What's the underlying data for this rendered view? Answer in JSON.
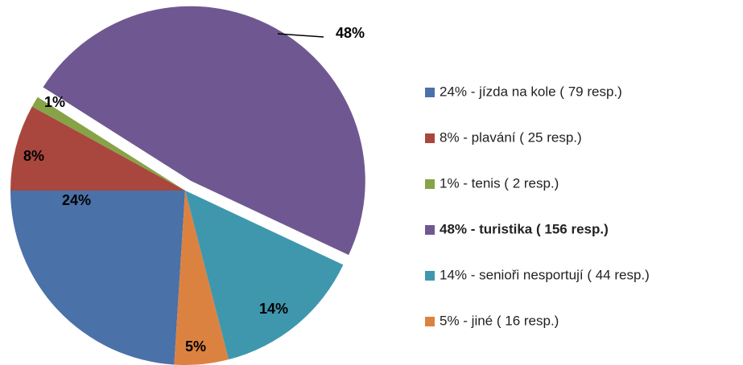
{
  "chart_data": {
    "type": "pie",
    "categories": [
      "24% - jízda na kole ( 79 resp.)",
      "8% - plavání ( 25 resp.)",
      "1% - tenis ( 2 resp.)",
      "48% - turistika ( 156 resp.)",
      "14% - senioři nesportují ( 44 resp.)",
      "5% - jiné ( 16 resp.)"
    ],
    "values": [
      24,
      8,
      1,
      48,
      14,
      5
    ],
    "value_labels": [
      "24%",
      "8%",
      "1%",
      "48%",
      "14%",
      "5%"
    ],
    "colors": [
      "#4a71a8",
      "#a9473f",
      "#86a447",
      "#6f5891",
      "#3f97ae",
      "#dc8240"
    ],
    "exploded": [
      false,
      false,
      false,
      true,
      false,
      false
    ],
    "legend_bold": [
      false,
      false,
      false,
      true,
      false,
      false
    ],
    "legend": "right"
  }
}
